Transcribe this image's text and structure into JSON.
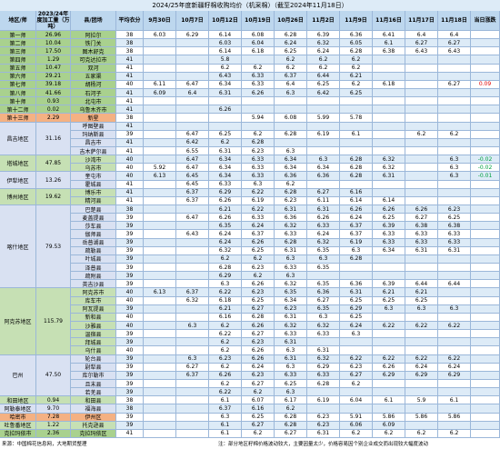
{
  "title": "2024/25年度新疆籽棉收购均价（机采棉）（截至2024年11月18日）",
  "header": [
    "地区/师",
    "2023/24年度加工量（万吨）",
    "县/团场",
    "平均衣分",
    "9月30日",
    "10月7日",
    "10月12日",
    "10月19日",
    "10月26日",
    "11月2日",
    "11月9日",
    "11月16日",
    "11月17日",
    "11月18日",
    "当日涨跌"
  ],
  "groups": [
    {
      "region": "第一师",
      "volume": "26.96",
      "color": "#a9d18e",
      "rows": [
        [
          "阿拉尔",
          "38",
          "6.03",
          "6.29",
          "6.14",
          "6.08",
          "6.28",
          "6.39",
          "6.36",
          "6.41",
          "6.4",
          "6.4",
          null
        ]
      ]
    },
    {
      "region": "第二师",
      "volume": "10.04",
      "color": "#a9d18e",
      "rows": [
        [
          "铁门关",
          "38",
          null,
          null,
          "6.03",
          "6.04",
          "6.24",
          "6.32",
          "6.05",
          "6.1",
          "6.27",
          "6.27",
          null
        ]
      ]
    },
    {
      "region": "第三师",
      "volume": "17.50",
      "color": "#a9d18e",
      "rows": [
        [
          "图木舒克",
          "38",
          null,
          null,
          "6.14",
          "6.18",
          "6.25",
          "6.24",
          "6.28",
          "6.38",
          "6.43",
          "6.43",
          null
        ]
      ]
    },
    {
      "region": "第四师",
      "volume": "1.29",
      "color": "#a9d18e",
      "rows": [
        [
          "可克达拉市",
          "41",
          null,
          null,
          "5.8",
          null,
          "6.2",
          "6.2",
          "6.2",
          null,
          null,
          null,
          null
        ]
      ]
    },
    {
      "region": "第五师",
      "volume": "10.47",
      "color": "#a9d18e",
      "rows": [
        [
          "双河",
          "41",
          null,
          null,
          "6.2",
          "6.2",
          "6.2",
          "6.2",
          "6.2",
          null,
          null,
          null,
          null
        ]
      ]
    },
    {
      "region": "第六师",
      "volume": "29.21",
      "color": "#a9d18e",
      "rows": [
        [
          "五家渠",
          "41",
          null,
          null,
          "6.43",
          "6.33",
          "6.37",
          "6.44",
          "6.21",
          null,
          null,
          null,
          null
        ]
      ]
    },
    {
      "region": "第七师",
      "volume": "39.18",
      "color": "#a9d18e",
      "rows": [
        [
          "胡杨河",
          "40",
          "6.11",
          "6.47",
          "6.34",
          "6.33",
          "6.4",
          "6.25",
          "6.2",
          "6.18",
          null,
          "6.27",
          "0.09"
        ]
      ]
    },
    {
      "region": "第八师",
      "volume": "41.66",
      "color": "#a9d18e",
      "rows": [
        [
          "石河子",
          "41",
          "6.09",
          "6.4",
          "6.31",
          "6.26",
          "6.3",
          "6.42",
          "6.25",
          null,
          null,
          null,
          null
        ]
      ]
    },
    {
      "region": "第十师",
      "volume": "0.93",
      "color": "#a9d18e",
      "rows": [
        [
          "北屯市",
          "41",
          null,
          null,
          null,
          null,
          null,
          null,
          null,
          null,
          null,
          null,
          null
        ]
      ]
    },
    {
      "region": "第十二师",
      "volume": "0.02",
      "color": "#a9d18e",
      "rows": [
        [
          "乌鲁木齐市",
          "41",
          null,
          null,
          "6.26",
          null,
          null,
          null,
          null,
          null,
          null,
          null,
          null
        ]
      ]
    },
    {
      "region": "第十三师",
      "volume": "2.29",
      "color": "#f4b183",
      "rows": [
        [
          "新星",
          "38",
          null,
          null,
          null,
          "5.94",
          "6.08",
          "5.99",
          "5.78",
          null,
          null,
          null,
          null
        ]
      ]
    },
    {
      "region": "昌吉地区",
      "volume": "31.16",
      "color": "#d9e1f2",
      "rows": [
        [
          "呼图壁县",
          "41",
          null,
          null,
          null,
          null,
          null,
          null,
          null,
          null,
          null,
          null,
          null
        ],
        [
          "玛纳斯县",
          "39",
          null,
          "6.47",
          "6.25",
          "6.2",
          "6.28",
          "6.19",
          "6.1",
          null,
          "6.2",
          "6.2",
          null
        ],
        [
          "昌吉市",
          "41",
          null,
          "6.42",
          "6.2",
          "6.28",
          null,
          null,
          null,
          null,
          null,
          null,
          null
        ],
        [
          "吉木萨尔县",
          "41",
          null,
          "6.55",
          "6.31",
          "6.23",
          "6.3",
          null,
          null,
          null,
          null,
          null,
          null
        ]
      ]
    },
    {
      "region": "塔城地区",
      "volume": "47.85",
      "color": "#c6e0b4",
      "rows": [
        [
          "沙湾市",
          "40",
          null,
          "6.47",
          "6.34",
          "6.33",
          "6.34",
          "6.3",
          "6.28",
          "6.32",
          null,
          "6.3",
          "-0.02"
        ],
        [
          "乌苏市",
          "40",
          "5.92",
          "6.47",
          "6.34",
          "6.33",
          "6.34",
          "6.34",
          "6.28",
          "6.32",
          null,
          "6.3",
          "-0.02"
        ]
      ]
    },
    {
      "region": "伊犁地区",
      "volume": "13.26",
      "color": "#d9e1f2",
      "rows": [
        [
          "奎屯市",
          "40",
          "6.13",
          "6.45",
          "6.34",
          "6.33",
          "6.36",
          "6.36",
          "6.28",
          "6.31",
          null,
          "6.3",
          "-0.01"
        ],
        [
          "霍城县",
          "41",
          null,
          "6.45",
          "6.33",
          "6.3",
          "6.2",
          null,
          null,
          null,
          null,
          null,
          null
        ]
      ]
    },
    {
      "region": "博州地区",
      "volume": "19.62",
      "color": "#c6e0b4",
      "rows": [
        [
          "博乐市",
          "41",
          null,
          "6.37",
          "6.29",
          "6.22",
          "6.28",
          "6.27",
          "6.16",
          null,
          null,
          null,
          null
        ],
        [
          "精河县",
          "41",
          null,
          "6.37",
          "6.26",
          "6.19",
          "6.23",
          "6.11",
          "6.14",
          "6.14",
          null,
          null,
          null
        ]
      ]
    },
    {
      "region": "喀什地区",
      "volume": "79.53",
      "color": "#d9e1f2",
      "rows": [
        [
          "巴楚县",
          "38",
          null,
          null,
          "6.21",
          "6.22",
          "6.31",
          "6.31",
          "6.26",
          "6.26",
          "6.26",
          "6.23",
          null
        ],
        [
          "麦盖提县",
          "39",
          null,
          "6.47",
          "6.26",
          "6.33",
          "6.36",
          "6.26",
          "6.24",
          "6.25",
          "6.27",
          "6.25",
          null
        ],
        [
          "莎车县",
          "39",
          null,
          null,
          "6.35",
          "6.24",
          "6.32",
          "6.33",
          "6.37",
          "6.39",
          "6.38",
          "6.38",
          null
        ],
        [
          "伽师县",
          "39",
          null,
          "6.43",
          "6.24",
          "6.37",
          "6.33",
          "6.24",
          "6.37",
          "6.33",
          "6.33",
          "6.33",
          null
        ],
        [
          "岳普湖县",
          "39",
          null,
          null,
          "6.24",
          "6.26",
          "6.28",
          "6.32",
          "6.19",
          "6.33",
          "6.33",
          "6.33",
          null
        ],
        [
          "疏勒县",
          "39",
          null,
          null,
          "6.32",
          "6.25",
          "6.31",
          "6.35",
          "6.3",
          "6.34",
          "6.31",
          "6.31",
          null
        ],
        [
          "叶城县",
          "39",
          null,
          null,
          "6.2",
          "6.2",
          "6.3",
          "6.3",
          "6.28",
          null,
          null,
          null,
          null
        ],
        [
          "泽普县",
          "39",
          null,
          null,
          "6.28",
          "6.23",
          "6.33",
          "6.35",
          null,
          null,
          null,
          null,
          null
        ],
        [
          "疏附县",
          "39",
          null,
          null,
          "6.29",
          "6.2",
          "6.3",
          null,
          null,
          null,
          null,
          null,
          null
        ],
        [
          "英吉沙县",
          "39",
          null,
          null,
          "6.3",
          "6.26",
          "6.32",
          "6.35",
          "6.36",
          "6.39",
          "6.44",
          "6.44",
          null
        ]
      ]
    },
    {
      "region": "阿克苏地区",
      "volume": "115.79",
      "color": "#c6e0b4",
      "rows": [
        [
          "阿克苏市",
          "40",
          "6.13",
          "6.37",
          "6.22",
          "6.23",
          "6.35",
          "6.36",
          "6.31",
          "6.21",
          "6.21",
          null,
          null
        ],
        [
          "库车市",
          "40",
          null,
          "6.32",
          "6.18",
          "6.25",
          "6.34",
          "6.27",
          "6.25",
          "6.25",
          "6.25",
          null,
          null
        ],
        [
          "阿瓦提县",
          "39",
          null,
          null,
          "6.21",
          "6.27",
          "6.23",
          "6.35",
          "6.29",
          "6.3",
          "6.3",
          "6.3",
          null
        ],
        [
          "新和县",
          "40",
          null,
          null,
          "6.16",
          "6.28",
          "6.31",
          "6.3",
          "6.25",
          null,
          null,
          null,
          null
        ],
        [
          "沙雅县",
          "40",
          null,
          "6.3",
          "6.2",
          "6.26",
          "6.32",
          "6.32",
          "6.24",
          "6.22",
          "6.22",
          "6.22",
          null
        ],
        [
          "温宿县",
          "39",
          null,
          null,
          "6.22",
          "6.27",
          "6.33",
          "6.33",
          "6.3",
          null,
          null,
          null,
          null
        ],
        [
          "拜城县",
          "39",
          null,
          null,
          "6.2",
          "6.23",
          "6.31",
          null,
          null,
          null,
          null,
          null,
          null
        ],
        [
          "乌什县",
          "40",
          null,
          null,
          "6.2",
          "6.26",
          "6.3",
          "6.31",
          null,
          null,
          null,
          null,
          null
        ]
      ]
    },
    {
      "region": "巴州",
      "volume": "47.50",
      "color": "#d9e1f2",
      "rows": [
        [
          "轮台县",
          "39",
          null,
          "6.3",
          "6.23",
          "6.26",
          "6.31",
          "6.32",
          "6.22",
          "6.22",
          "6.22",
          "6.22",
          null
        ],
        [
          "尉犁县",
          "39",
          null,
          "6.27",
          "6.2",
          "6.24",
          "6.3",
          "6.29",
          "6.23",
          "6.26",
          "6.24",
          "6.24",
          null
        ],
        [
          "库尔勒市",
          "39",
          null,
          "6.37",
          "6.26",
          "6.23",
          "6.33",
          "6.33",
          "6.27",
          "6.29",
          "6.29",
          "6.29",
          null
        ],
        [
          "且末县",
          "39",
          null,
          null,
          "6.2",
          "6.27",
          "6.25",
          "6.28",
          "6.2",
          null,
          null,
          null,
          null
        ],
        [
          "若羌县",
          "39",
          null,
          null,
          "6.22",
          "6.2",
          "6.3",
          null,
          null,
          null,
          null,
          null,
          null
        ]
      ]
    },
    {
      "region": "和田地区",
      "volume": "0.94",
      "color": "#c6e0b4",
      "rows": [
        [
          "和田县",
          "38",
          null,
          null,
          "6.1",
          "6.07",
          "6.17",
          "6.19",
          "6.04",
          "6.1",
          "5.9",
          "6.1",
          null
        ]
      ]
    },
    {
      "region": "阿勒泰地区",
      "volume": "9.70",
      "color": "#d9e1f2",
      "rows": [
        [
          "福海县",
          "38",
          null,
          null,
          "6.37",
          "6.16",
          "6.2",
          null,
          null,
          null,
          null,
          null,
          null
        ]
      ]
    },
    {
      "region": "哈密市",
      "volume": "7.28",
      "color": "#f4b183",
      "rows": [
        [
          "伊州区",
          "39",
          null,
          null,
          "6.3",
          "6.25",
          "6.28",
          "6.23",
          "5.91",
          "5.86",
          "5.86",
          "5.86",
          null
        ]
      ]
    },
    {
      "region": "吐鲁番地区",
      "volume": "1.22",
      "color": "#c6e0b4",
      "rows": [
        [
          "托克逊县",
          "39",
          null,
          null,
          "6.1",
          "6.27",
          "6.28",
          "6.23",
          "6.06",
          "6.09",
          null,
          null,
          null
        ]
      ]
    },
    {
      "region": "克拉玛依市",
      "volume": "2.36",
      "color": "#a9d18e",
      "rows": [
        [
          "克拉玛依区",
          "41",
          null,
          null,
          "6.1",
          "6.2",
          "6.27",
          "6.31",
          "6.2",
          "6.2",
          "6.2",
          "6.2",
          null
        ]
      ]
    }
  ],
  "source": "来源：中国棉花信息网，大地期货整理",
  "note": "注：部分地区籽棉价格波动较大，主要因量太少，价格容易因个别企业成交而出现较大幅度波动"
}
